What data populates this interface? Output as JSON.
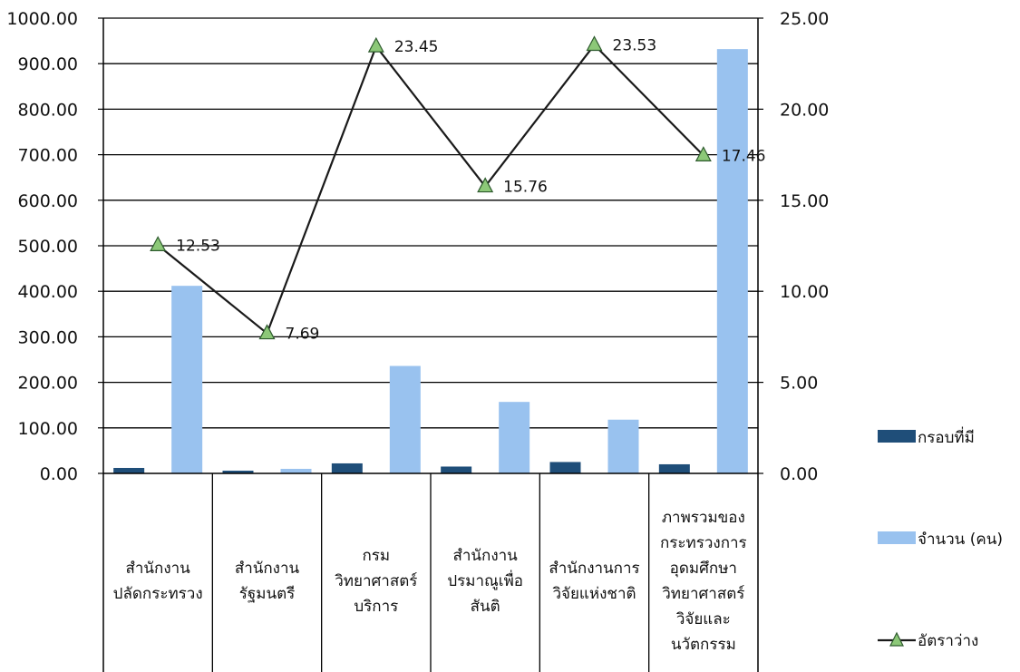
{
  "chart_data": {
    "type": "bar",
    "categories": [
      [
        "สำนักงาน",
        "ปลัดกระทรวง"
      ],
      [
        "สำนักงาน",
        "รัฐมนตรี"
      ],
      [
        "กรม",
        "วิทยาศาสตร์",
        "บริการ"
      ],
      [
        "สำนักงาน",
        "ปรมาณูเพื่อ",
        "สันติ"
      ],
      [
        "สำนักงานการ",
        "วิจัยแห่งชาติ"
      ],
      [
        "ภาพรวมของ",
        "กระทรวงการ",
        "อุดมศึกษา",
        "วิทยาศาสตร์",
        "วิจัยและ",
        "นวัตกรรม"
      ]
    ],
    "series": [
      {
        "name": "กรอบที่มี",
        "type": "bar",
        "axis": "left",
        "color": "#1f4e79",
        "values": [
          12,
          6,
          22,
          15,
          25,
          20
        ]
      },
      {
        "name": "จำนวน (คน)",
        "type": "bar",
        "axis": "left",
        "color": "#99c2ef",
        "values": [
          412,
          10,
          236,
          157,
          118,
          932
        ]
      },
      {
        "name": "อัตราว่าง",
        "type": "line",
        "axis": "right",
        "color": "#1a1a1a",
        "marker_color": "#8cc878",
        "values": [
          12.53,
          7.69,
          23.45,
          15.76,
          23.53,
          17.46
        ],
        "labels": [
          "12.53",
          "7.69",
          "23.45",
          "15.76",
          "23.53",
          "17.46"
        ]
      }
    ],
    "y_left": {
      "min": 0,
      "max": 1000,
      "step": 100,
      "ticks": [
        "0.00",
        "100.00",
        "200.00",
        "300.00",
        "400.00",
        "500.00",
        "600.00",
        "700.00",
        "800.00",
        "900.00",
        "1000.00"
      ]
    },
    "y_right": {
      "min": 0,
      "max": 25,
      "step": 5,
      "ticks": [
        "0.00",
        "5.00",
        "10.00",
        "15.00",
        "20.00",
        "25.00"
      ]
    },
    "grid": true,
    "legend_position": "right"
  }
}
